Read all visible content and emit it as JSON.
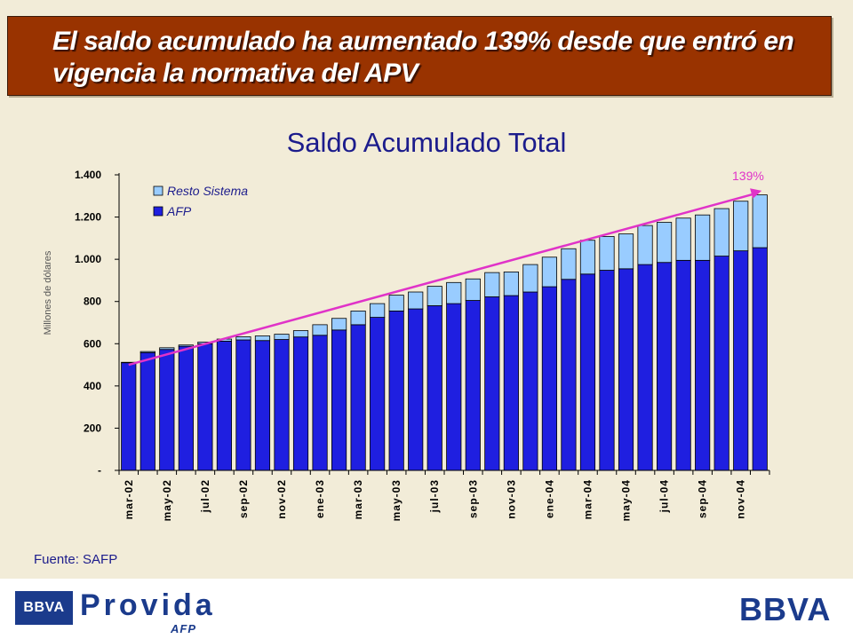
{
  "header": {
    "title": "El saldo acumulado ha aumentado 139% desde que entró en vigencia la normativa del APV"
  },
  "chart_data": {
    "type": "bar",
    "stacked": true,
    "title": "Saldo Acumulado Total",
    "ylabel": "Millones de dólares",
    "ylim": [
      0,
      1400
    ],
    "yticks": [
      0,
      200,
      400,
      600,
      800,
      1000,
      1200,
      1400
    ],
    "ytick_labels": [
      "-",
      "200",
      "400",
      "600",
      "800",
      "1.000",
      "1.200",
      "1.400"
    ],
    "categories": [
      "mar-02",
      "abr-02",
      "may-02",
      "jun-02",
      "jul-02",
      "ago-02",
      "sep-02",
      "oct-02",
      "nov-02",
      "dic-02",
      "ene-03",
      "feb-03",
      "mar-03",
      "abr-03",
      "may-03",
      "jun-03",
      "jul-03",
      "ago-03",
      "sep-03",
      "oct-03",
      "nov-03",
      "dic-03",
      "ene-04",
      "feb-04",
      "mar-04",
      "abr-04",
      "may-04",
      "jun-04",
      "jul-04",
      "ago-04",
      "sep-04",
      "oct-04",
      "nov-04",
      "dic-04"
    ],
    "tick_labels": [
      "mar-02",
      "",
      "may-02",
      "",
      "jul-02",
      "",
      "sep-02",
      "",
      "nov-02",
      "",
      "ene-03",
      "",
      "mar-03",
      "",
      "may-03",
      "",
      "jul-03",
      "",
      "sep-03",
      "",
      "nov-03",
      "",
      "ene-04",
      "",
      "mar-04",
      "",
      "may-04",
      "",
      "jul-04",
      "",
      "sep-04",
      "",
      "nov-04",
      ""
    ],
    "series": [
      {
        "name": "AFP",
        "color": "#1f1fe0",
        "values": [
          510,
          558,
          573,
          588,
          600,
          612,
          618,
          615,
          620,
          632,
          640,
          665,
          690,
          725,
          755,
          765,
          780,
          790,
          805,
          822,
          828,
          845,
          870,
          905,
          930,
          948,
          955,
          975,
          985,
          995,
          995,
          1015,
          1040,
          1055
        ]
      },
      {
        "name": "Resto Sistema",
        "color": "#99ccff",
        "values": [
          2,
          5,
          8,
          6,
          8,
          10,
          15,
          22,
          25,
          30,
          50,
          55,
          65,
          65,
          75,
          80,
          92,
          100,
          102,
          115,
          112,
          130,
          140,
          145,
          160,
          160,
          165,
          185,
          190,
          200,
          215,
          225,
          235,
          250
        ]
      }
    ],
    "annotation": {
      "label": "139%",
      "color": "#e033c8",
      "from": [
        0,
        500
      ],
      "to": [
        33,
        1325
      ]
    },
    "legend_position": "top-left",
    "grid": false
  },
  "source": "Fuente: SAFP",
  "footer": {
    "left_logo_box": "BBVA",
    "left_logo_name": "Provida",
    "left_logo_sub": "AFP",
    "right_logo": "BBVA"
  }
}
